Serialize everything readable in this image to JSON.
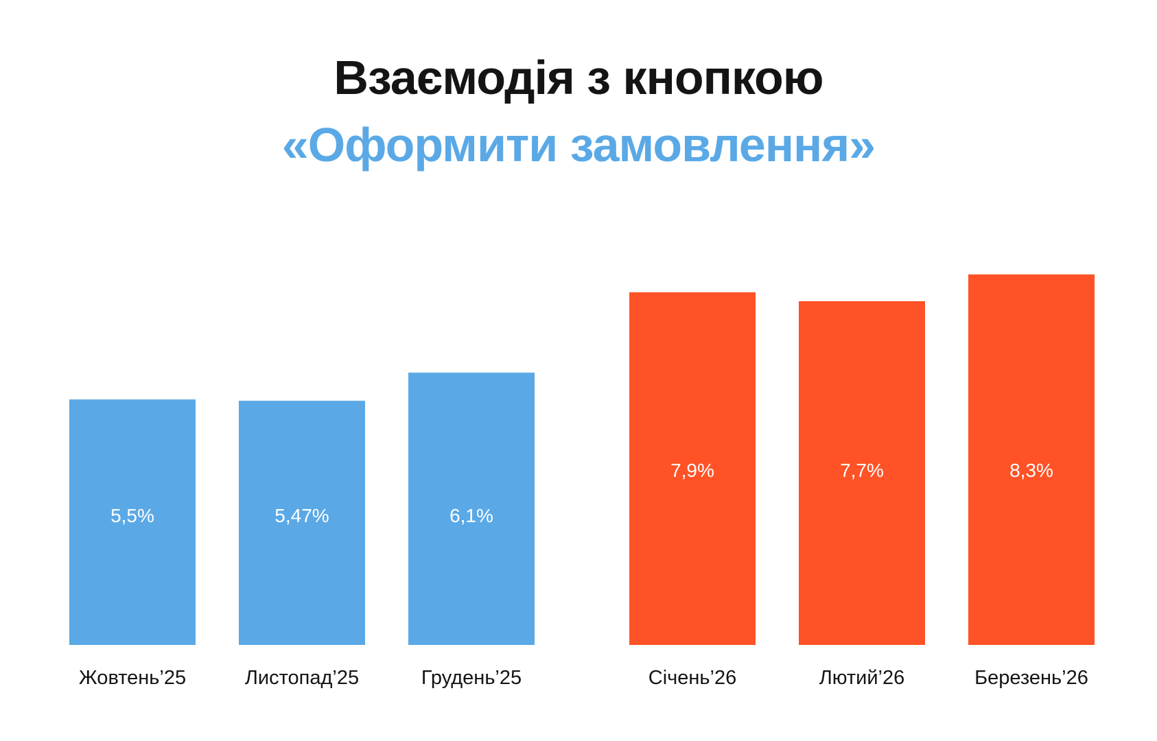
{
  "title_line1": "Взаємодія з кнопкою",
  "title_line2": "«Оформити замовлення»",
  "colors": {
    "title": "#141414",
    "accent": "#5aa9e6",
    "bar_2025": "#5aa9e6",
    "bar_2026": "#ff5226",
    "value_label": "#ffffff"
  },
  "chart_data": {
    "type": "bar",
    "title": "Взаємодія з кнопкою «Оформити замовлення»",
    "xlabel": "",
    "ylabel": "",
    "grid": false,
    "legend": "none",
    "categories": [
      "Жовтень’25",
      "Листопад’25",
      "Грудень’25",
      "Січень’26",
      "Лютий’26",
      "Березень’26"
    ],
    "values": [
      5.5,
      5.47,
      6.1,
      7.9,
      7.7,
      8.3
    ],
    "value_labels": [
      "5,5%",
      "5,47%",
      "6,1%",
      "7,9%",
      "7,7%",
      "8,3%"
    ],
    "bar_colors": [
      "#5aa9e6",
      "#5aa9e6",
      "#5aa9e6",
      "#ff5226",
      "#ff5226",
      "#ff5226"
    ],
    "ylim": [
      0,
      8.3
    ]
  }
}
